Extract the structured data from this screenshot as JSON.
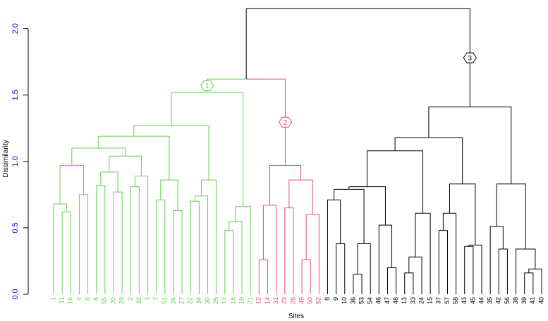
{
  "chart_data": {
    "type": "dendrogram",
    "ylabel": "Dissimilarity",
    "xlabel": "Sites",
    "labels": [
      "1",
      "11",
      "16",
      "4",
      "5",
      "6",
      "55",
      "20",
      "29",
      "2",
      "32",
      "3",
      "7",
      "51",
      "26",
      "27",
      "22",
      "34",
      "30",
      "25",
      "17",
      "18",
      "19",
      "21",
      "12",
      "14",
      "31",
      "23",
      "28",
      "49",
      "50",
      "52",
      "8",
      "9",
      "10",
      "36",
      "53",
      "54",
      "46",
      "47",
      "48",
      "13",
      "33",
      "24",
      "15",
      "37",
      "57",
      "58",
      "43",
      "45",
      "44",
      "35",
      "42",
      "56",
      "38",
      "39",
      "41",
      "40"
    ],
    "merges": [
      [
        -2,
        -3,
        0.62
      ],
      [
        -1,
        1,
        0.68
      ],
      [
        -4,
        -5,
        0.75
      ],
      [
        2,
        3,
        0.97
      ],
      [
        -6,
        -7,
        0.82
      ],
      [
        -8,
        -9,
        0.77
      ],
      [
        5,
        6,
        0.92
      ],
      [
        -10,
        -11,
        0.81
      ],
      [
        8,
        -12,
        0.89
      ],
      [
        7,
        9,
        1.04
      ],
      [
        4,
        10,
        1.1
      ],
      [
        -13,
        -14,
        0.71
      ],
      [
        -15,
        -16,
        0.63
      ],
      [
        12,
        13,
        0.86
      ],
      [
        11,
        14,
        1.19
      ],
      [
        -17,
        -18,
        0.7
      ],
      [
        16,
        -19,
        0.74
      ],
      [
        17,
        -20,
        0.86
      ],
      [
        15,
        18,
        1.27
      ],
      [
        -21,
        -22,
        0.48
      ],
      [
        20,
        -23,
        0.55
      ],
      [
        21,
        -24,
        0.66
      ],
      [
        19,
        22,
        1.52
      ],
      [
        -25,
        -26,
        0.26
      ],
      [
        24,
        -27,
        0.67
      ],
      [
        -28,
        -29,
        0.65
      ],
      [
        -30,
        -31,
        0.26
      ],
      [
        27,
        -32,
        0.6
      ],
      [
        26,
        28,
        0.86
      ],
      [
        25,
        29,
        0.97
      ],
      [
        23,
        30,
        1.62
      ],
      [
        -34,
        -35,
        0.38
      ],
      [
        -33,
        32,
        0.71
      ],
      [
        -36,
        -37,
        0.15
      ],
      [
        34,
        -38,
        0.38
      ],
      [
        33,
        35,
        0.79
      ],
      [
        -40,
        -41,
        0.2
      ],
      [
        -39,
        37,
        0.52
      ],
      [
        36,
        38,
        0.81
      ],
      [
        -42,
        -43,
        0.16
      ],
      [
        40,
        -44,
        0.28
      ],
      [
        41,
        -45,
        0.61
      ],
      [
        39,
        42,
        1.08
      ],
      [
        -46,
        -47,
        0.48
      ],
      [
        44,
        -48,
        0.61
      ],
      [
        -49,
        -50,
        0.36
      ],
      [
        46,
        -51,
        0.37
      ],
      [
        45,
        47,
        0.83
      ],
      [
        43,
        48,
        1.18
      ],
      [
        -53,
        -54,
        0.34
      ],
      [
        -52,
        50,
        0.51
      ],
      [
        -56,
        -57,
        0.16
      ],
      [
        52,
        -58,
        0.19
      ],
      [
        -55,
        53,
        0.34
      ],
      [
        51,
        54,
        0.83
      ],
      [
        49,
        55,
        1.41
      ],
      [
        31,
        56,
        2.15
      ]
    ],
    "clusters": [
      {
        "label": "1",
        "color": "#61d04f",
        "merge": 23
      },
      {
        "label": "2",
        "color": "#df536b",
        "merge": 30
      },
      {
        "label": "3",
        "color": "#000000",
        "merge": 56
      }
    ],
    "line_color": "#000000",
    "tick_label_color": "#0000ff",
    "ylim": [
      0,
      2.2
    ],
    "yticks": [
      {
        "value": 0,
        "label": "0.0"
      },
      {
        "value": 0.5,
        "label": "0.5"
      },
      {
        "value": 1,
        "label": "1.0"
      },
      {
        "value": 1.5,
        "label": "1.5"
      },
      {
        "value": 2,
        "label": "2.0"
      }
    ]
  }
}
